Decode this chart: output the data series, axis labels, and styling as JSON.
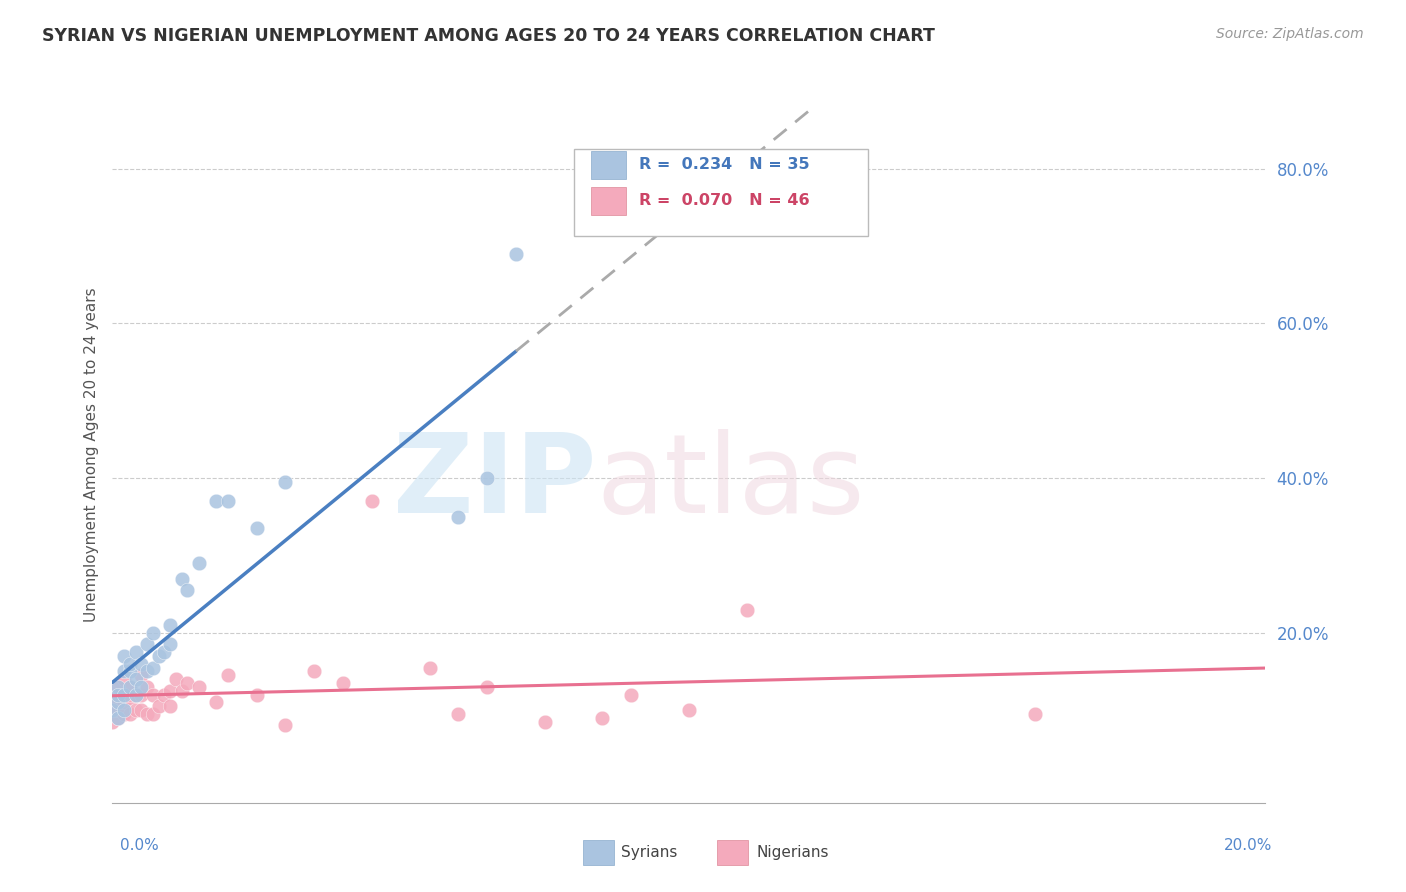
{
  "title": "SYRIAN VS NIGERIAN UNEMPLOYMENT AMONG AGES 20 TO 24 YEARS CORRELATION CHART",
  "source": "Source: ZipAtlas.com",
  "ylabel": "Unemployment Among Ages 20 to 24 years",
  "ytick_vals": [
    0.0,
    0.2,
    0.4,
    0.6,
    0.8
  ],
  "ytick_labels": [
    "",
    "20.0%",
    "40.0%",
    "60.0%",
    "80.0%"
  ],
  "xmin": 0.0,
  "xmax": 0.2,
  "ymin": -0.02,
  "ymax": 0.88,
  "syrian_R": 0.234,
  "syrian_N": 35,
  "nigerian_R": 0.07,
  "nigerian_N": 46,
  "syrian_color": "#aac4e0",
  "nigerian_color": "#f4aabc",
  "syrian_line_color": "#4a7fc1",
  "nigerian_line_color": "#e87090",
  "syrian_x": [
    0.0,
    0.001,
    0.001,
    0.001,
    0.001,
    0.002,
    0.002,
    0.002,
    0.002,
    0.003,
    0.003,
    0.003,
    0.004,
    0.004,
    0.004,
    0.005,
    0.005,
    0.006,
    0.006,
    0.007,
    0.007,
    0.008,
    0.009,
    0.01,
    0.01,
    0.012,
    0.013,
    0.015,
    0.018,
    0.02,
    0.025,
    0.03,
    0.06,
    0.065,
    0.07
  ],
  "syrian_y": [
    0.1,
    0.09,
    0.11,
    0.13,
    0.12,
    0.1,
    0.12,
    0.15,
    0.17,
    0.13,
    0.15,
    0.16,
    0.12,
    0.14,
    0.175,
    0.13,
    0.16,
    0.15,
    0.185,
    0.155,
    0.2,
    0.17,
    0.175,
    0.185,
    0.21,
    0.27,
    0.255,
    0.29,
    0.37,
    0.37,
    0.335,
    0.395,
    0.35,
    0.4,
    0.69
  ],
  "nigerian_x": [
    0.0,
    0.001,
    0.001,
    0.001,
    0.001,
    0.001,
    0.002,
    0.002,
    0.002,
    0.003,
    0.003,
    0.003,
    0.003,
    0.004,
    0.004,
    0.005,
    0.005,
    0.005,
    0.006,
    0.006,
    0.007,
    0.007,
    0.008,
    0.009,
    0.01,
    0.01,
    0.011,
    0.012,
    0.013,
    0.015,
    0.018,
    0.02,
    0.025,
    0.03,
    0.035,
    0.04,
    0.045,
    0.055,
    0.06,
    0.065,
    0.075,
    0.085,
    0.09,
    0.1,
    0.11,
    0.16
  ],
  "nigerian_y": [
    0.085,
    0.09,
    0.1,
    0.11,
    0.12,
    0.13,
    0.095,
    0.11,
    0.14,
    0.095,
    0.115,
    0.12,
    0.13,
    0.1,
    0.12,
    0.1,
    0.12,
    0.145,
    0.095,
    0.13,
    0.095,
    0.12,
    0.105,
    0.12,
    0.105,
    0.125,
    0.14,
    0.125,
    0.135,
    0.13,
    0.11,
    0.145,
    0.12,
    0.08,
    0.15,
    0.135,
    0.37,
    0.155,
    0.095,
    0.13,
    0.085,
    0.09,
    0.12,
    0.1,
    0.23,
    0.095
  ]
}
